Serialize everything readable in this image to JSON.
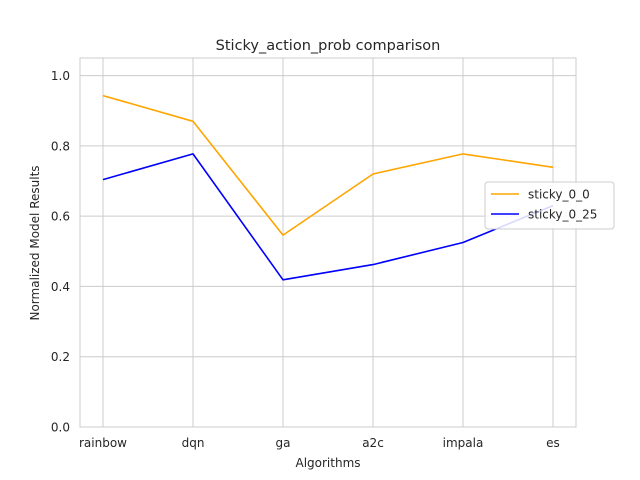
{
  "chart_data": {
    "type": "line",
    "title": "Sticky_action_prob comparison",
    "xlabel": "Algorithms",
    "ylabel": "Normalized Model Results",
    "categories": [
      "rainbow",
      "dqn",
      "ga",
      "a2c",
      "impala",
      "es"
    ],
    "ylim": [
      0.0,
      1.05
    ],
    "yticks": [
      0.0,
      0.2,
      0.4,
      0.6,
      0.8,
      1.0
    ],
    "ytick_labels": [
      "0.0",
      "0.2",
      "0.4",
      "0.6",
      "0.8",
      "1.0"
    ],
    "grid": true,
    "legend_position": "center-right",
    "series": [
      {
        "name": "sticky_0_0",
        "color": "#ffa500",
        "values": [
          0.943,
          0.87,
          0.546,
          0.72,
          0.777,
          0.739
        ]
      },
      {
        "name": "sticky_0_25",
        "color": "#0000ff",
        "values": [
          0.704,
          0.777,
          0.419,
          0.462,
          0.525,
          0.63
        ]
      }
    ]
  }
}
